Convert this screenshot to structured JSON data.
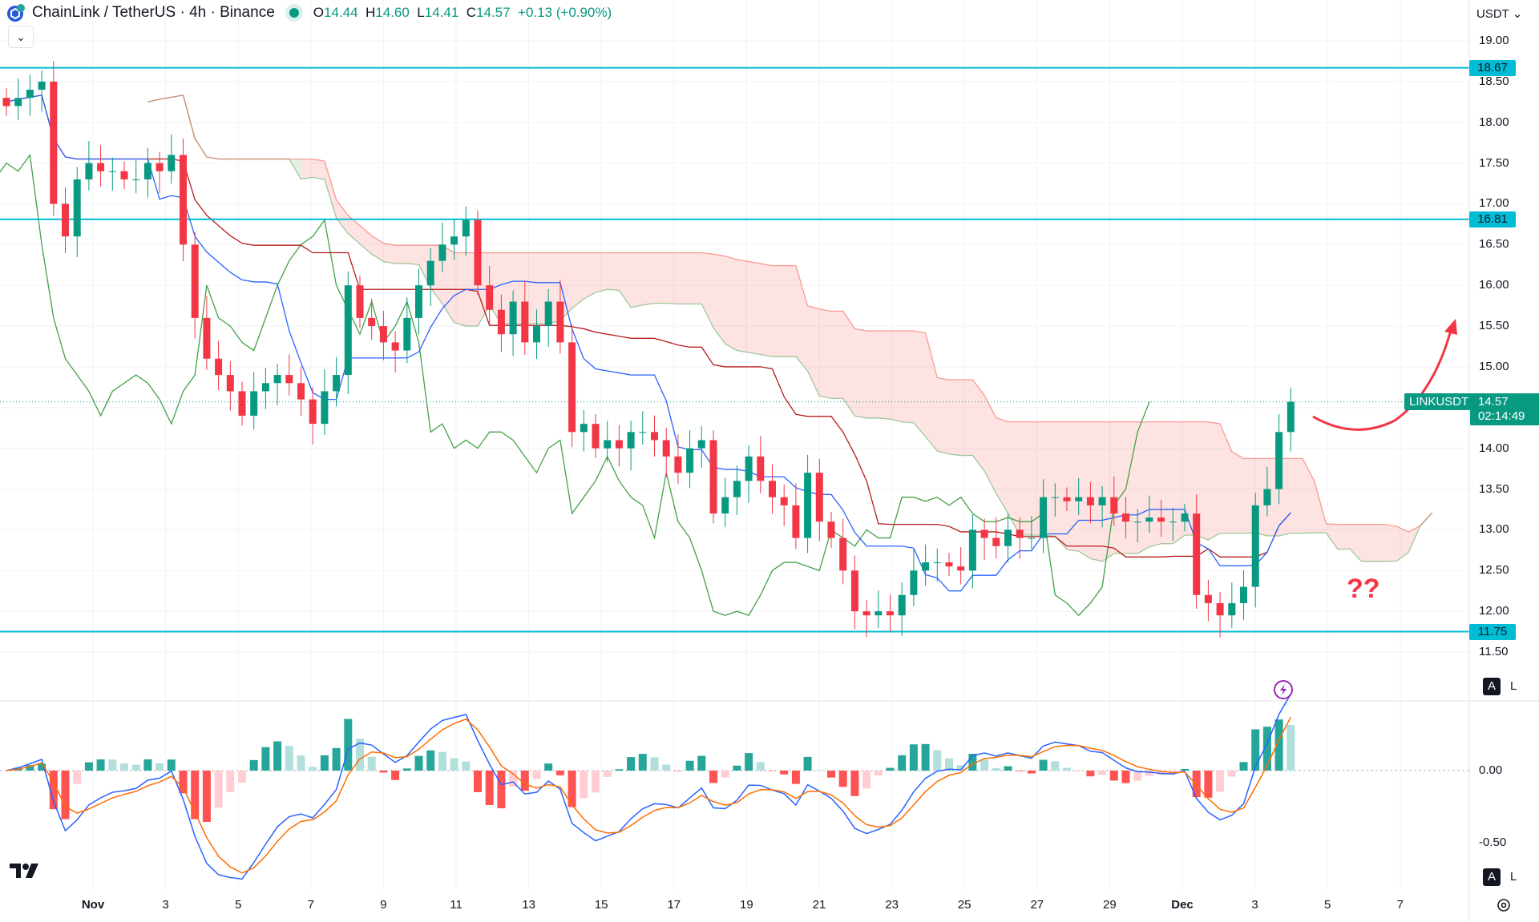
{
  "header": {
    "logo_icon": "chainlink-logo-icon",
    "title": "ChainLink / TetherUS · 4h · Binance",
    "status": "market-open",
    "open_label": "O",
    "open": "14.44",
    "high_label": "H",
    "high": "14.60",
    "low_label": "L",
    "low": "14.41",
    "close_label": "C",
    "close": "14.57",
    "change": "+0.13 (+0.90%)"
  },
  "currency": "USDT",
  "price_axis": [
    "19.00",
    "18.50",
    "18.00",
    "17.50",
    "17.00",
    "16.50",
    "16.00",
    "15.50",
    "15.00",
    "14.00",
    "13.50",
    "13.00",
    "12.50",
    "12.00",
    "11.50"
  ],
  "levels": [
    {
      "value": 18.67,
      "label": "18.67"
    },
    {
      "value": 16.81,
      "label": "16.81"
    },
    {
      "value": 11.75,
      "label": "11.75"
    }
  ],
  "symbol_label": "LINKUSDT",
  "last_price": "14.57",
  "countdown": "02:14:49",
  "macd_axis": [
    "0.00",
    "-0.50"
  ],
  "date_axis": [
    "Nov",
    "3",
    "5",
    "7",
    "9",
    "11",
    "13",
    "15",
    "17",
    "19",
    "21",
    "23",
    "25",
    "27",
    "29",
    "Dec",
    "3",
    "5",
    "7"
  ],
  "annotation": {
    "text": "??",
    "arrow": "up-right-curved"
  },
  "buttons": {
    "auto": "A",
    "log": "L"
  },
  "colors": {
    "up": "#089981",
    "down": "#f23645",
    "level": "#00bcd4",
    "tenkan": "#2962ff",
    "kijun": "#b71c1c",
    "lagging": "#43a047",
    "macd": "#2962ff",
    "signal": "#ff6d00"
  },
  "chart_data": {
    "type": "candlestick",
    "indicators": [
      "Ichimoku Cloud",
      "MACD"
    ],
    "closes": [
      18.2,
      18.3,
      18.4,
      18.5,
      17.0,
      16.6,
      17.3,
      17.5,
      17.4,
      17.4,
      17.3,
      17.3,
      17.5,
      17.4,
      17.6,
      16.5,
      15.6,
      15.1,
      14.9,
      14.7,
      14.4,
      14.7,
      14.8,
      14.9,
      14.8,
      14.6,
      14.3,
      14.7,
      14.9,
      16.0,
      15.6,
      15.5,
      15.3,
      15.2,
      15.6,
      16.0,
      16.3,
      16.5,
      16.6,
      16.8,
      16.0,
      15.7,
      15.4,
      15.8,
      15.3,
      15.5,
      15.8,
      15.3,
      14.2,
      14.3,
      14.0,
      14.1,
      14.0,
      14.2,
      14.2,
      14.1,
      13.9,
      13.7,
      14.0,
      14.1,
      13.2,
      13.4,
      13.6,
      13.9,
      13.6,
      13.4,
      13.3,
      12.9,
      13.7,
      13.1,
      12.9,
      12.5,
      12.0,
      11.95,
      12.0,
      11.95,
      12.2,
      12.5,
      12.6,
      12.6,
      12.55,
      12.5,
      13.0,
      12.9,
      12.8,
      13.0,
      12.9,
      12.9,
      13.4,
      13.4,
      13.35,
      13.4,
      13.3,
      13.4,
      13.2,
      13.1,
      13.1,
      13.15,
      13.1,
      13.1,
      13.2,
      12.2,
      12.1,
      11.95,
      12.1,
      12.3,
      13.3,
      13.5,
      14.2,
      14.57
    ],
    "ylim": [
      11.5,
      19.0
    ]
  }
}
